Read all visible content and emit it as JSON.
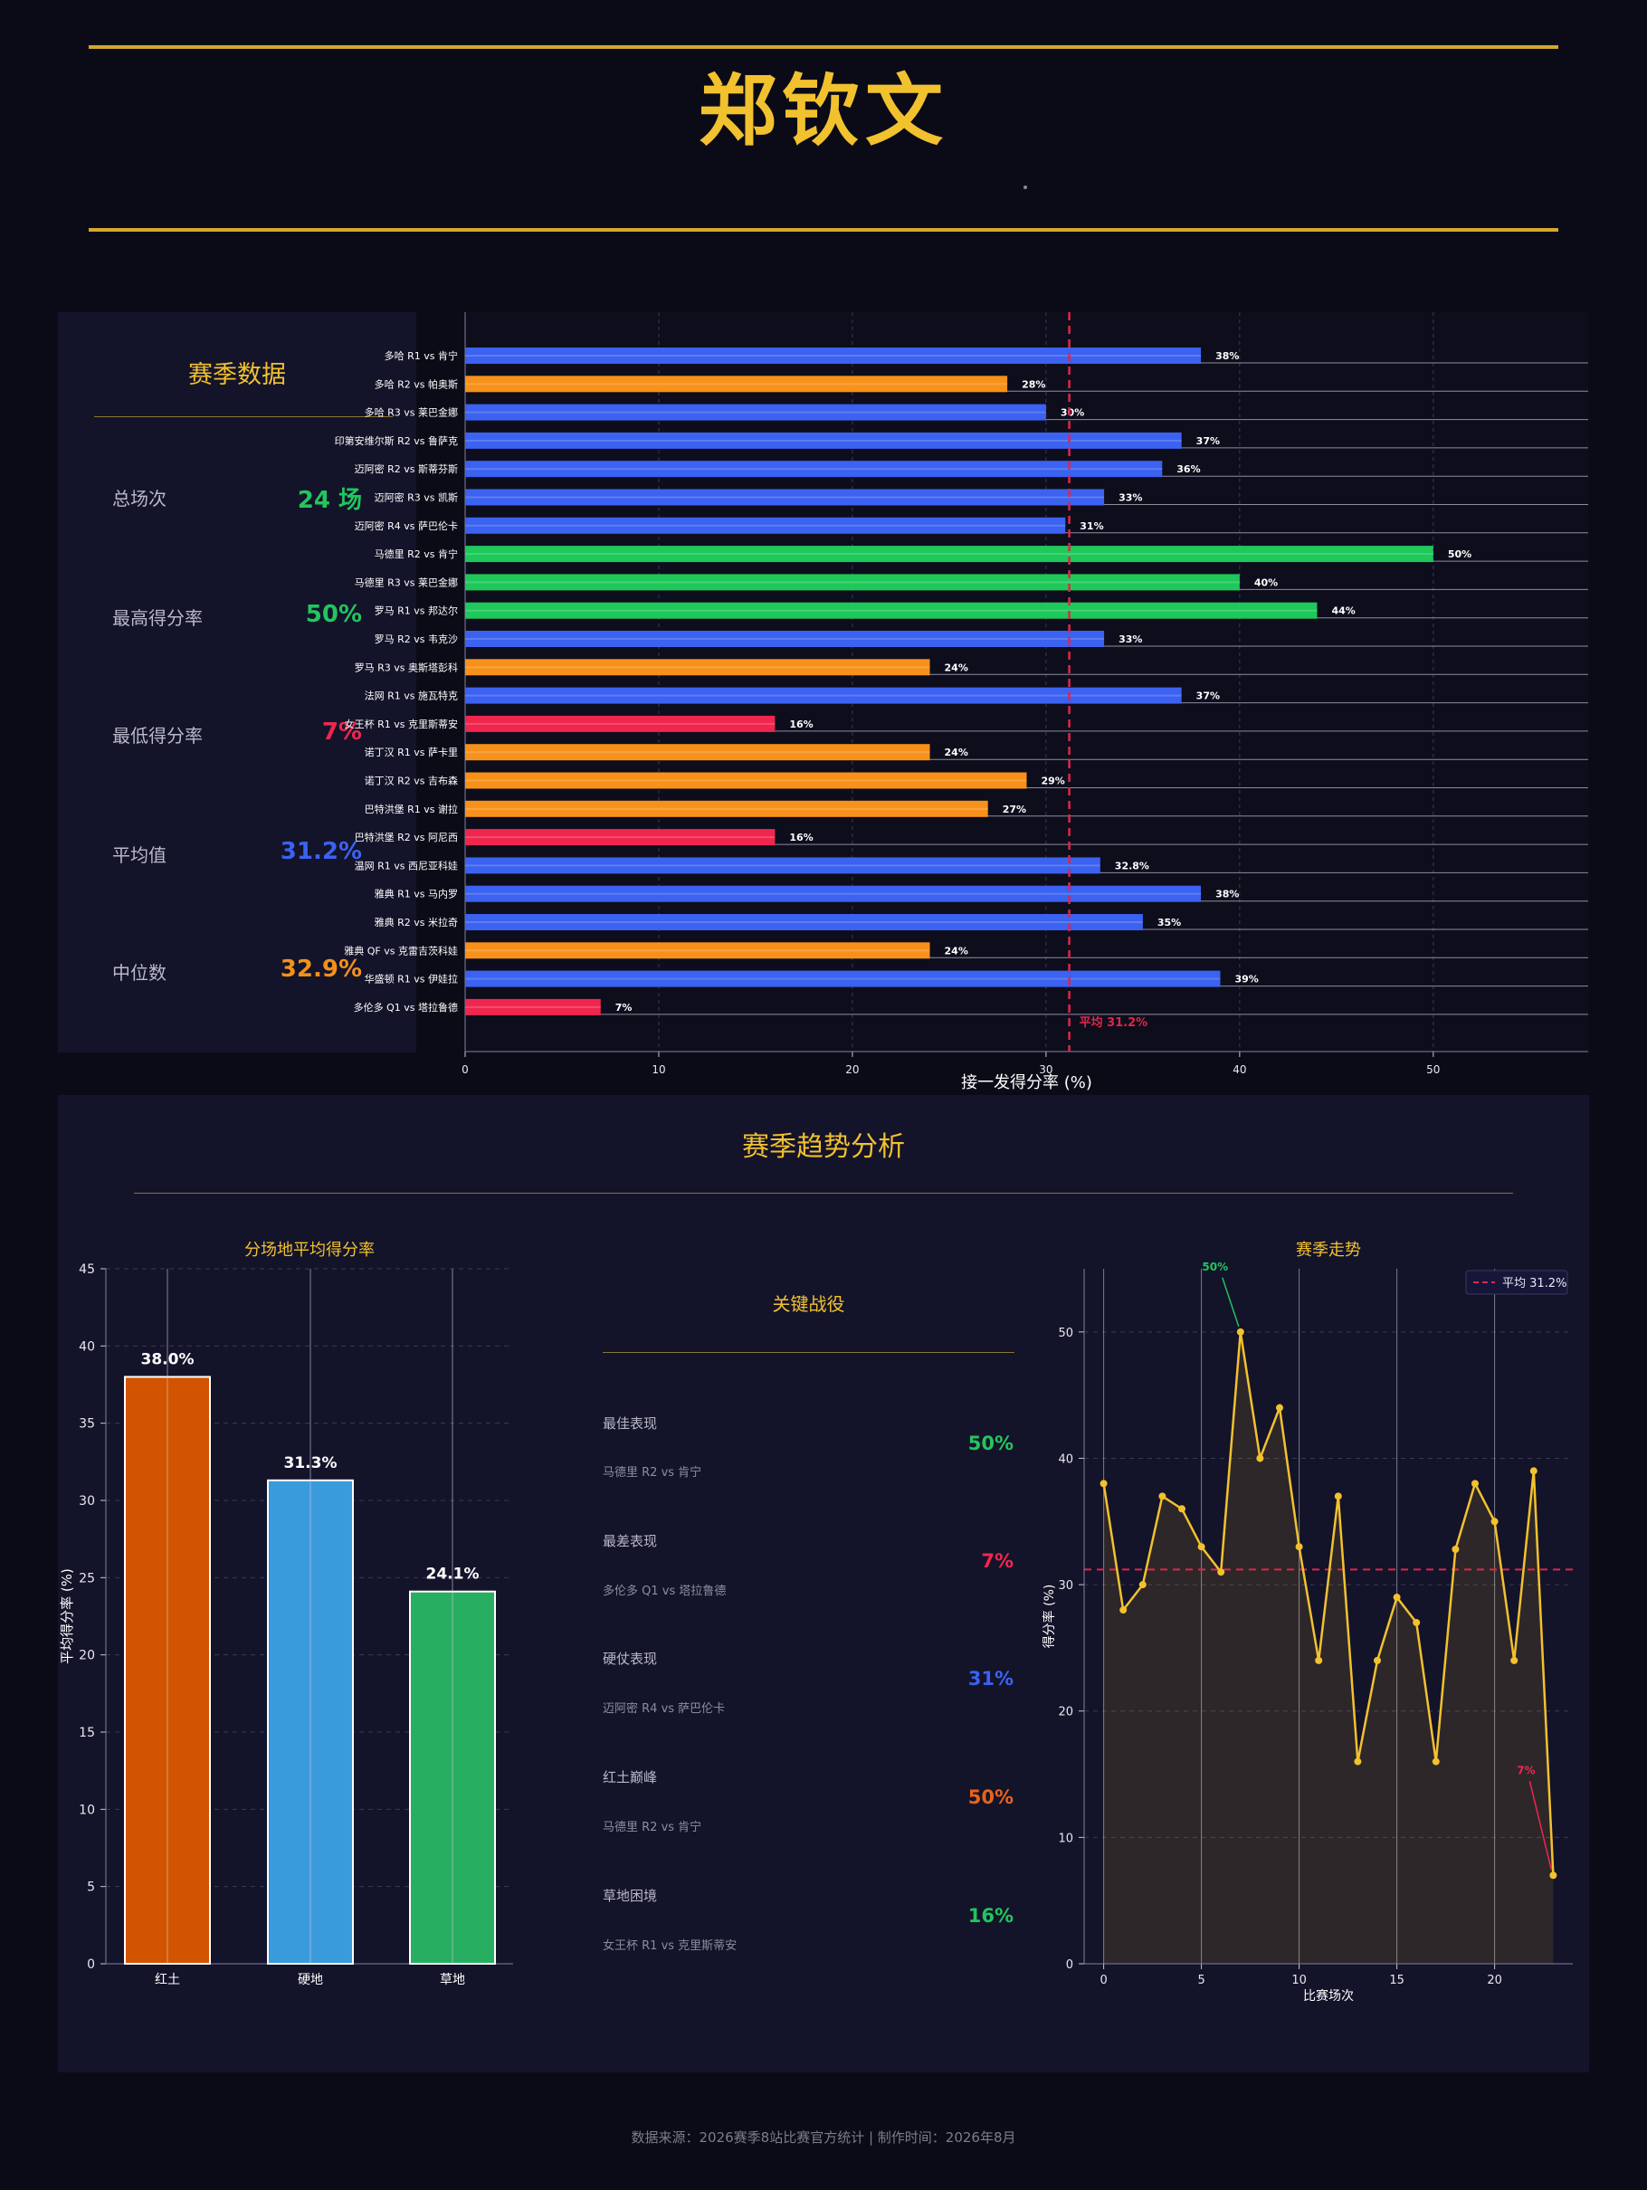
{
  "header": {
    "title": "郑钦文",
    "subtitle": ""
  },
  "stats": {
    "title": "赛季数据",
    "items": [
      {
        "label": "总场次",
        "value": "24 场",
        "color": "#22c55e"
      },
      {
        "label": "最高得分率",
        "value": "50%",
        "color": "#22c55e"
      },
      {
        "label": "最低得分率",
        "value": "7%",
        "color": "#f0264e"
      },
      {
        "label": "平均值",
        "value": "31.2%",
        "color": "#3b62f0"
      },
      {
        "label": "中位数",
        "value": "32.9%",
        "color": "#f39019"
      }
    ]
  },
  "trend_section": {
    "title": "赛季趋势分析"
  },
  "key_battles": {
    "title": "关键战役",
    "items": [
      {
        "category": "最佳表现",
        "match": "马德里 R2 vs 肯宁",
        "value": "50%",
        "color": "#22c55e"
      },
      {
        "category": "最差表现",
        "match": "多伦多 Q1 vs 塔拉鲁德",
        "value": "7%",
        "color": "#f0264e"
      },
      {
        "category": "硬仗表现",
        "match": "迈阿密 R4 vs 萨巴伦卡",
        "value": "31%",
        "color": "#3b62f0"
      },
      {
        "category": "红土巅峰",
        "match": "马德里 R2 vs 肯宁",
        "value": "50%",
        "color": "#e8631a"
      },
      {
        "category": "草地困境",
        "match": "女王杯 R1 vs 克里斯蒂安",
        "value": "16%",
        "color": "#22c55e"
      }
    ]
  },
  "footer": {
    "text": "数据来源：2026赛季8站比赛官方统计  |  制作时间：2026年8月"
  },
  "chart_data": [
    {
      "type": "bar",
      "orientation": "horizontal",
      "categories": [
        "多哈 R1 vs 肯宁",
        "多哈 R2 vs 帕奥斯",
        "多哈 R3 vs 莱巴金娜",
        "印第安维尔斯 R2 vs 鲁萨克",
        "迈阿密 R2 vs 斯蒂芬斯",
        "迈阿密 R3 vs 凯斯",
        "迈阿密 R4 vs 萨巴伦卡",
        "马德里 R2 vs 肯宁",
        "马德里 R3 vs 莱巴金娜",
        "罗马 R1 vs 邦达尔",
        "罗马 R2 vs 韦克沙",
        "罗马 R3 vs 奥斯塔彭科",
        "法网 R1 vs 施瓦特克",
        "女王杯 R1 vs 克里斯蒂安",
        "诺丁汉 R1 vs 萨卡里",
        "诺丁汉 R2 vs 吉布森",
        "巴特洪堡 R1 vs 谢拉",
        "巴特洪堡 R2 vs 阿尼西",
        "温网 R1 vs 西尼亚科娃",
        "雅典 R1 vs 马内罗",
        "雅典 R2 vs 米拉奇",
        "雅典 QF vs 克雷吉茨科娃",
        "华盛顿 R1 vs 伊娃拉",
        "多伦多 Q1 vs 塔拉鲁德"
      ],
      "values": [
        38,
        28,
        30,
        37,
        36,
        33,
        31,
        50,
        40,
        44,
        33,
        24,
        37,
        16,
        24,
        29,
        27,
        16,
        32.8,
        38,
        35,
        24,
        39,
        7
      ],
      "value_labels": [
        "38%",
        "28%",
        "30%",
        "37%",
        "36%",
        "33%",
        "31%",
        "50%",
        "40%",
        "44%",
        "33%",
        "24%",
        "37%",
        "16%",
        "24%",
        "29%",
        "27%",
        "16%",
        "32.8%",
        "38%",
        "35%",
        "24%",
        "39%",
        "7%"
      ],
      "xlabel": "接一发得分率 (%)",
      "xlim": [
        0,
        58
      ],
      "xticks": [
        0,
        10,
        20,
        30,
        40,
        50
      ],
      "average": 31.2,
      "average_label": "平均 31.2%",
      "colors": {
        "high": "#3b62f0",
        "top": "#1ec85a",
        "mid": "#f7911a",
        "low": "#f0264e",
        "avg": "#e0264a"
      }
    },
    {
      "type": "bar",
      "title": "分场地平均得分率",
      "categories": [
        "红土",
        "硬地",
        "草地"
      ],
      "values": [
        38.0,
        31.3,
        24.1
      ],
      "value_labels": [
        "38.0%",
        "31.3%",
        "24.1%"
      ],
      "ylabel": "平均得分率 (%)",
      "ylim": [
        0,
        45
      ],
      "yticks": [
        0,
        5,
        10,
        15,
        20,
        25,
        30,
        35,
        40,
        45
      ],
      "colors": [
        "#d35400",
        "#3a9bdc",
        "#27ae60"
      ]
    },
    {
      "type": "line",
      "title": "赛季走势",
      "x": [
        0,
        1,
        2,
        3,
        4,
        5,
        6,
        7,
        8,
        9,
        10,
        11,
        12,
        13,
        14,
        15,
        16,
        17,
        18,
        19,
        20,
        21,
        22,
        23
      ],
      "y": [
        38,
        28,
        30,
        37,
        36,
        33,
        31,
        50,
        40,
        44,
        33,
        24,
        37,
        16,
        24,
        29,
        27,
        16,
        32.8,
        38,
        35,
        24,
        39,
        7
      ],
      "xlabel": "比赛场次",
      "ylabel": "得分率 (%)",
      "xlim": [
        -1,
        24
      ],
      "ylim": [
        0,
        55
      ],
      "xticks": [
        0,
        5,
        10,
        15,
        20
      ],
      "yticks": [
        0,
        10,
        20,
        30,
        40,
        50
      ],
      "average": 31.2,
      "legend": "平均 31.2%",
      "legend_position": "top-right",
      "annotations": [
        {
          "x": 7,
          "y": 50,
          "text": "50%",
          "color": "#22c55e"
        },
        {
          "x": 23,
          "y": 7,
          "text": "7%",
          "color": "#f0264e"
        }
      ],
      "line_color": "#f2c12e"
    }
  ]
}
